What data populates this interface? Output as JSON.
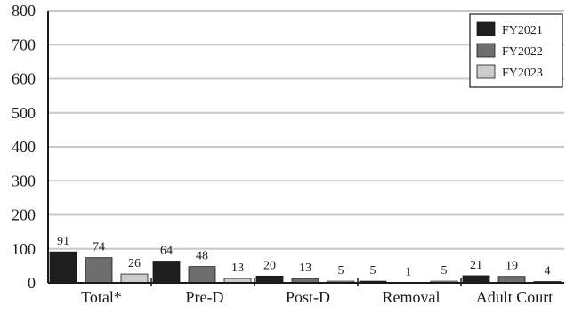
{
  "chart_data": {
    "type": "bar",
    "title": "",
    "xlabel": "",
    "ylabel": "",
    "ylim": [
      0,
      800
    ],
    "yticks": [
      0,
      100,
      200,
      300,
      400,
      500,
      600,
      700,
      800
    ],
    "grid": true,
    "legend_position": "top-right",
    "categories": [
      "Total*",
      "Pre-D",
      "Post-D",
      "Removal",
      "Adult Court"
    ],
    "series": [
      {
        "name": "FY2021",
        "color": "#1e1e1e",
        "values": [
          91,
          64,
          20,
          5,
          21
        ]
      },
      {
        "name": "FY2022",
        "color": "#6e6e6e",
        "values": [
          74,
          48,
          13,
          1,
          19
        ]
      },
      {
        "name": "FY2023",
        "color": "#cccccc",
        "values": [
          26,
          13,
          5,
          5,
          4
        ]
      }
    ]
  }
}
